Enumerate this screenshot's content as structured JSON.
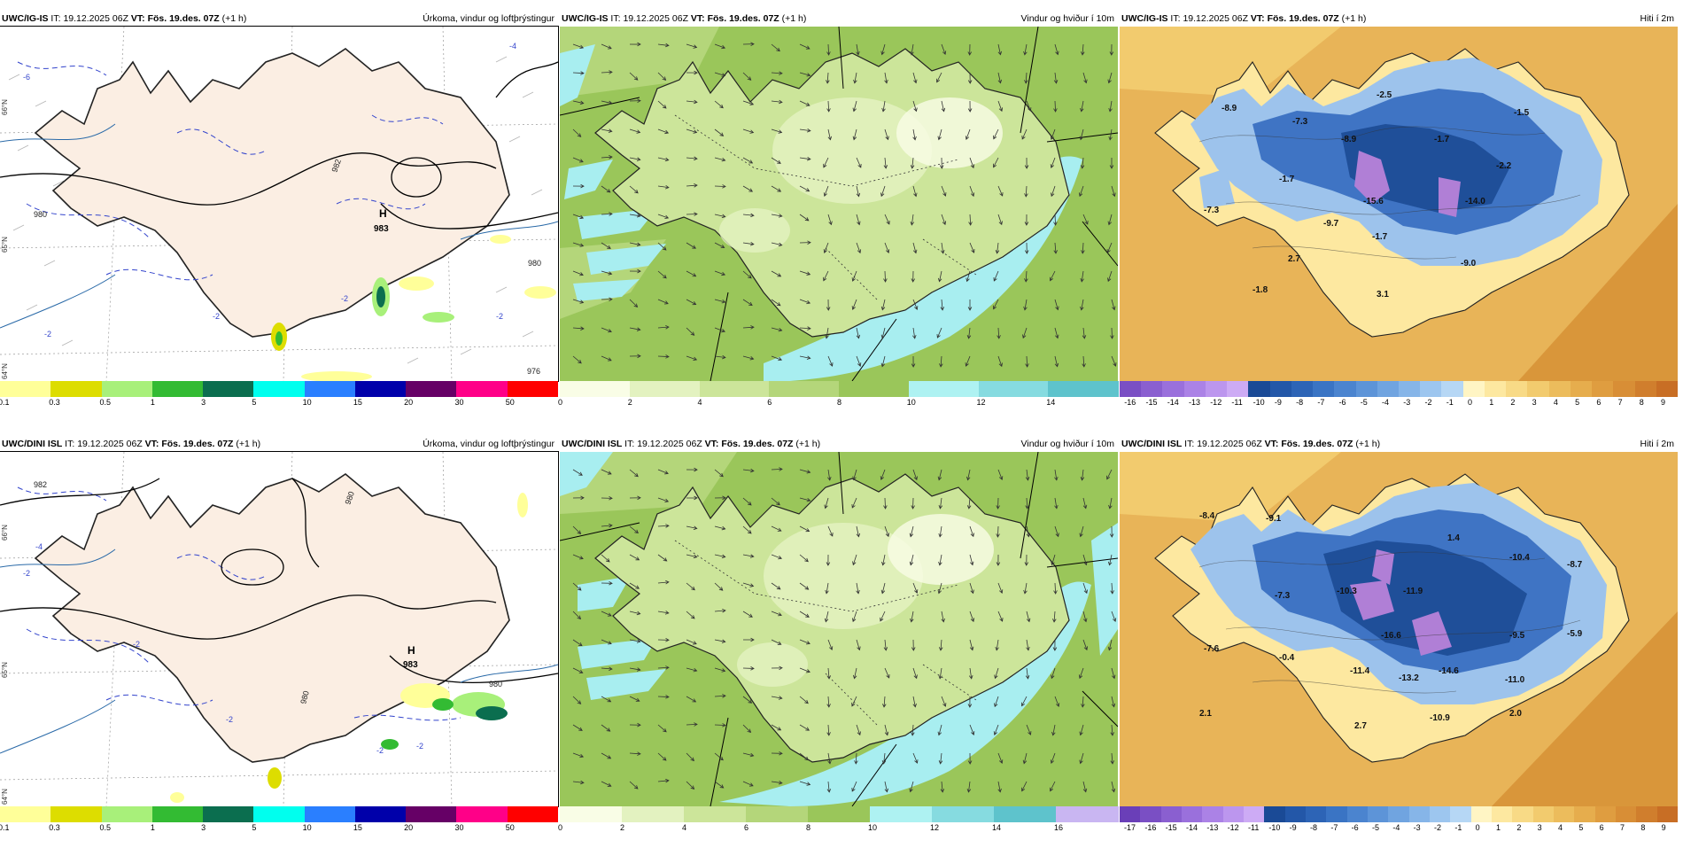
{
  "rows": [
    {
      "model": "UWC/IG-IS",
      "it_label": "IT:",
      "it_value": "19.12.2025 06Z",
      "vt_label": "VT:",
      "vt_value": "Fös. 19.des. 07Z",
      "lead": "(+1 h)"
    },
    {
      "model": "UWC/DINI ISL",
      "it_label": "IT:",
      "it_value": "19.12.2025 06Z",
      "vt_label": "VT:",
      "vt_value": "Fös. 19.des. 07Z",
      "lead": "(+1 h)"
    }
  ],
  "panel_titles": {
    "precip": "Úrkoma, vindur og loftþrýstingur",
    "wind": "Vindur og hviður í 10m",
    "temp": "Hiti í 2m"
  },
  "colors": {
    "land": "#fbeee3",
    "sea_precip": "#ffffff",
    "wind_green": "#bcd98a",
    "wind_light": "#eef7d0",
    "wind_cyan": "#a8eef0",
    "temp_blue": "#3f74c4",
    "temp_dark": "#1f4f99",
    "temp_light": "#9dc3ec",
    "temp_purple": "#b07fd6",
    "temp_sea": "#e8b458",
    "temp_sea_dark": "#d9963a"
  },
  "precip_scale": {
    "labels": [
      "0.1",
      "0.3",
      "0.5",
      "1",
      "3",
      "5",
      "10",
      "15",
      "20",
      "30",
      "50"
    ],
    "colors": [
      "#ffff99",
      "#dddd00",
      "#a8f07a",
      "#33bb33",
      "#0b6e4f",
      "#00ffee",
      "#2a7fff",
      "#0000aa",
      "#660066",
      "#ff0088",
      "#ff0000"
    ]
  },
  "wind_scale_top": {
    "labels": [
      "0",
      "2",
      "4",
      "6",
      "8",
      "10",
      "12",
      "14"
    ],
    "colors": [
      "#f9fde6",
      "#e3f2c0",
      "#cce59a",
      "#b4d67a",
      "#9ac65a",
      "#aef2f2",
      "#86dbe0",
      "#5ec3cc"
    ]
  },
  "wind_scale_bottom": {
    "labels": [
      "0",
      "2",
      "4",
      "6",
      "8",
      "10",
      "12",
      "14",
      "16"
    ],
    "colors": [
      "#f9fde6",
      "#e3f2c0",
      "#cce59a",
      "#b4d67a",
      "#9ac65a",
      "#aef2f2",
      "#86dbe0",
      "#5ec3cc",
      "#c9b6f2"
    ]
  },
  "temp_scale_top": {
    "labels": [
      "-16",
      "-15",
      "-14",
      "-13",
      "-12",
      "-11",
      "-10",
      "-9",
      "-8",
      "-7",
      "-6",
      "-5",
      "-4",
      "-3",
      "-2",
      "-1",
      "0",
      "1",
      "2",
      "3",
      "4",
      "5",
      "6",
      "7",
      "8",
      "9"
    ],
    "colors": [
      "#7a4fc4",
      "#8a5fd0",
      "#9a70dc",
      "#ab82e6",
      "#bc96ee",
      "#cdabf5",
      "#1a4a96",
      "#2357a8",
      "#2d64b6",
      "#3a74c4",
      "#4b84cf",
      "#5d94d8",
      "#70a4e0",
      "#86b5e8",
      "#9dc6ef",
      "#b6d7f5",
      "#fff5c4",
      "#fde8a0",
      "#f8da86",
      "#f2cb6e",
      "#ecbc5c",
      "#e6ad4d",
      "#df9d40",
      "#d88e36",
      "#d07e2d",
      "#c86e25"
    ]
  },
  "temp_scale_bottom": {
    "labels": [
      "-17",
      "-16",
      "-15",
      "-14",
      "-13",
      "-12",
      "-11",
      "-10",
      "-9",
      "-8",
      "-7",
      "-6",
      "-5",
      "-4",
      "-3",
      "-2",
      "-1",
      "0",
      "1",
      "2",
      "3",
      "4",
      "5",
      "6",
      "7",
      "8",
      "9"
    ],
    "colors": [
      "#6a3fb8",
      "#7a4fc4",
      "#8a5fd0",
      "#9a70dc",
      "#ab82e6",
      "#bc96ee",
      "#cdabf5",
      "#1a4a96",
      "#2357a8",
      "#2d64b6",
      "#3a74c4",
      "#4b84cf",
      "#5d94d8",
      "#70a4e0",
      "#86b5e8",
      "#9dc6ef",
      "#b6d7f5",
      "#fff5c4",
      "#fde8a0",
      "#f8da86",
      "#f2cb6e",
      "#ecbc5c",
      "#e6ad4d",
      "#df9d40",
      "#d88e36",
      "#d07e2d",
      "#c86e25"
    ]
  },
  "precip_map_top": {
    "high_label": "H",
    "high_value": "983",
    "isobar_labels": [
      "980",
      "982",
      "980",
      "976"
    ],
    "temp_contour_labels": [
      "-2",
      "-2",
      "-2",
      "-2",
      "-6",
      "-4",
      "-2",
      "-2"
    ],
    "lat_labels": [
      "66°N",
      "65°N",
      "64°N"
    ]
  },
  "precip_map_bottom": {
    "high_label": "H",
    "high_value": "983",
    "isobar_labels": [
      "982",
      "980",
      "980",
      "980"
    ],
    "temp_contour_labels": [
      "-2",
      "-4",
      "-2",
      "-2",
      "-2",
      "-2",
      "-2"
    ],
    "lat_labels": [
      "66°N",
      "65°N",
      "64°N"
    ]
  },
  "temp_map_top": {
    "values": [
      "-8.9",
      "-7.3",
      "-2.5",
      "-1.5",
      "-8.9",
      "-1.7",
      "-2.2",
      "-1.7",
      "-15.6",
      "-7.3",
      "-9.7",
      "-1.7",
      "-14.0",
      "2.7",
      "-9.0",
      "-1.8",
      "3.1"
    ]
  },
  "temp_map_bottom": {
    "values": [
      "-8.4",
      "-9.1",
      "1.4",
      "-10.4",
      "-8.7",
      "-7.3",
      "-10.3",
      "-11.9",
      "-7.6",
      "-16.6",
      "-9.5",
      "-5.9",
      "-0.4",
      "-11.4",
      "-13.2",
      "-14.6",
      "-11.0",
      "2.1",
      "2.7",
      "-10.9",
      "2.0"
    ]
  }
}
